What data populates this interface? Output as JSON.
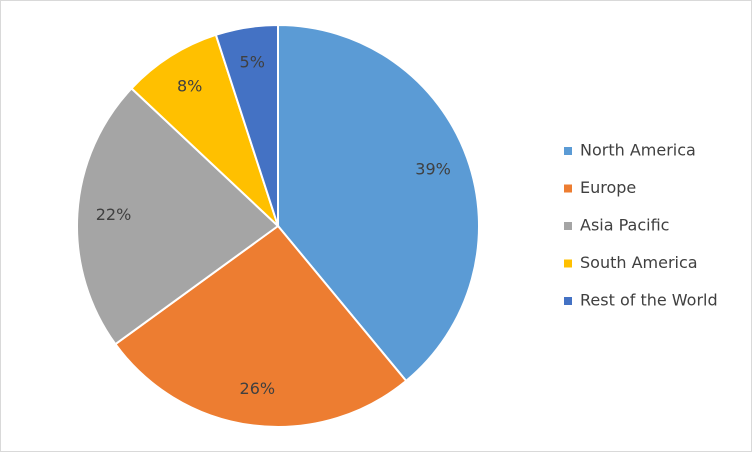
{
  "chart_data": {
    "type": "pie",
    "categories": [
      "North America",
      "Europe",
      "Asia Pacific",
      "South America",
      "Rest of the World"
    ],
    "values": [
      39,
      26,
      22,
      8,
      5
    ],
    "value_labels": [
      "39%",
      "26%",
      "22%",
      "8%",
      "5%"
    ],
    "colors": [
      "#5b9bd5",
      "#ed7d31",
      "#a5a5a5",
      "#ffc000",
      "#4472c4"
    ],
    "legend": "right"
  }
}
